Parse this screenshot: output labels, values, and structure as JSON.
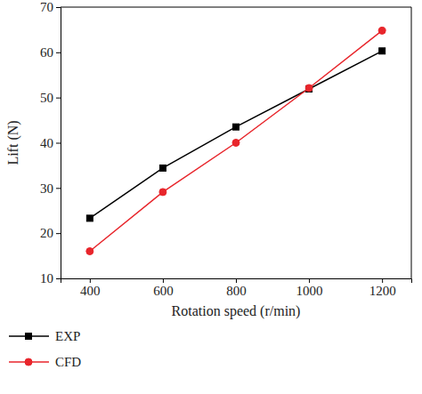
{
  "chart_data": {
    "type": "line",
    "x_label": "Rotation speed (r/min)",
    "y_label": "Lift (N)",
    "x": [
      400,
      600,
      800,
      1000,
      1200
    ],
    "series": [
      {
        "name": "EXP",
        "color": "#000000",
        "marker": "square",
        "line_style": "solid",
        "values": [
          23.3,
          34.4,
          43.5,
          51.9,
          60.3
        ]
      },
      {
        "name": "CFD",
        "color": "#e8252b",
        "marker": "circle",
        "line_style": "solid",
        "values": [
          16.0,
          29.1,
          40.0,
          52.1,
          64.8
        ]
      }
    ],
    "xlim": [
      320,
      1280
    ],
    "xticks": [
      400,
      600,
      800,
      1000,
      1200
    ],
    "ylim": [
      10,
      70
    ],
    "yticks": [
      10,
      20,
      30,
      40,
      50,
      60,
      70
    ],
    "grid": false,
    "legend": "bottom-left"
  }
}
